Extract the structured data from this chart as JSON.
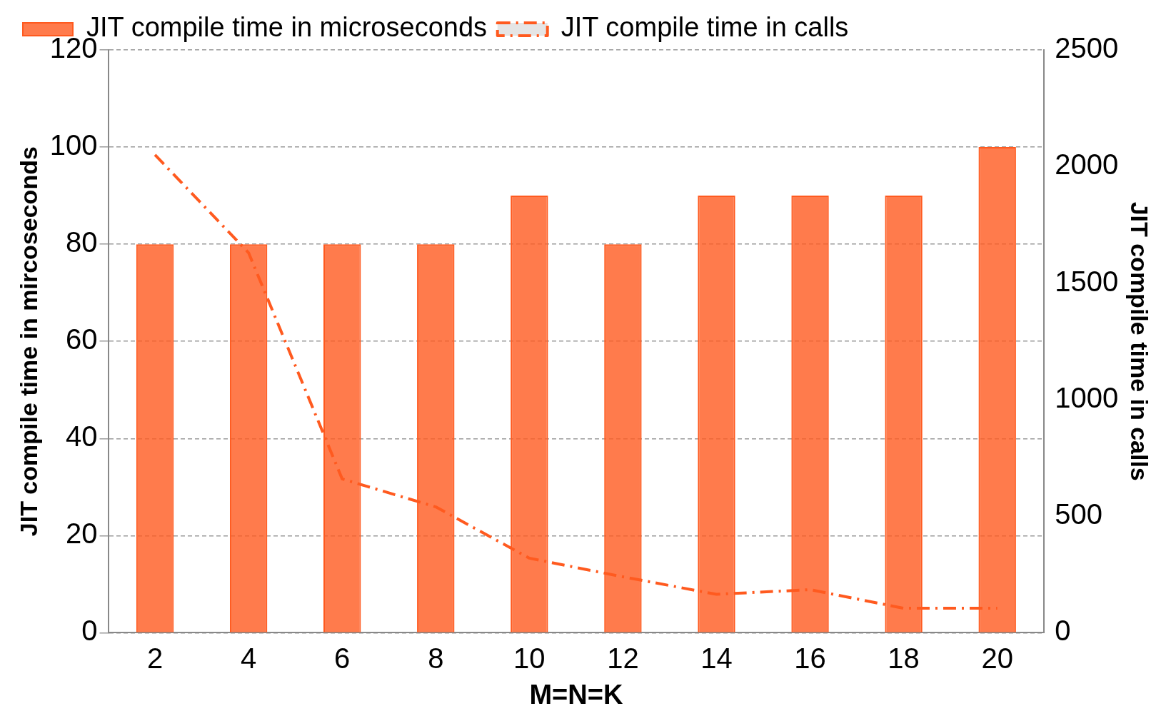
{
  "chart_data": {
    "type": "bar",
    "categories": [
      "2",
      "4",
      "6",
      "8",
      "10",
      "12",
      "14",
      "16",
      "18",
      "20"
    ],
    "xlabel": "M=N=K",
    "ylabel": "JIT compile time in mircoseconds",
    "y2label": "JIT compile time in calls",
    "series": [
      {
        "name": "JIT compile time in microseconds",
        "color": "#ff5a1f",
        "values": [
          80,
          80,
          80,
          80,
          90,
          80,
          90,
          90,
          90,
          100
        ]
      },
      {
        "name": "JIT compile time in calls",
        "type": "line",
        "axis": "y2",
        "color": "#ff5a1f",
        "line_style": "dashed",
        "marker": "none",
        "values": [
          2050,
          1630,
          660,
          540,
          320,
          240,
          165,
          185,
          105,
          105
        ]
      }
    ],
    "ylim": [
      0,
      120
    ],
    "yticks": [
      0,
      20,
      40,
      60,
      80,
      100,
      120
    ],
    "y2lim": [
      0,
      2500
    ],
    "y2ticks": [
      0,
      500,
      1000,
      1500,
      2000,
      2500
    ],
    "grid": "y",
    "legend": "top"
  }
}
